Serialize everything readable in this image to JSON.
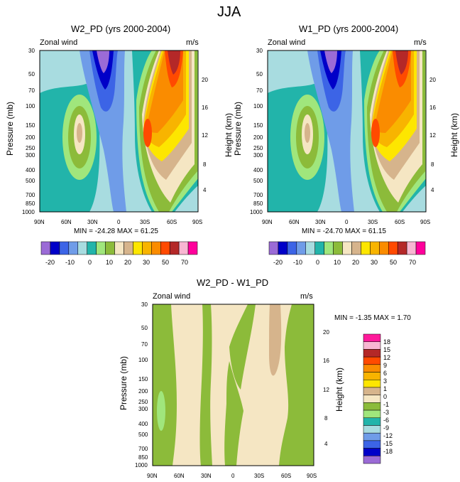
{
  "figure": {
    "title": "JJA"
  },
  "chart_data": [
    {
      "type": "contour",
      "title": "W2_PD (yrs 2000-2004)",
      "left_label": "Zonal wind",
      "right_label": "m/s",
      "ylabel": "Pressure (mb)",
      "y2label": "Height (km)",
      "x_ticks": [
        "90N",
        "60N",
        "30N",
        "0",
        "30S",
        "60S",
        "90S"
      ],
      "y_ticks": [
        "30",
        "50",
        "70",
        "100",
        "150",
        "200",
        "250",
        "300",
        "400",
        "500",
        "700",
        "850",
        "1000"
      ],
      "y2_ticks": [
        "20",
        "16",
        "12",
        "8",
        "4"
      ],
      "stats": "MIN = -24.28  MAX =  61.25",
      "min": -24.28,
      "max": 61.25
    },
    {
      "type": "contour",
      "title": "W1_PD (yrs 2000-2004)",
      "left_label": "Zonal wind",
      "right_label": "m/s",
      "ylabel": "Pressure (mb)",
      "y2label": "Height (km)",
      "x_ticks": [
        "90N",
        "60N",
        "30N",
        "0",
        "30S",
        "60S",
        "90S"
      ],
      "y_ticks": [
        "30",
        "50",
        "70",
        "100",
        "150",
        "200",
        "250",
        "300",
        "400",
        "500",
        "700",
        "850",
        "1000"
      ],
      "y2_ticks": [
        "20",
        "16",
        "12",
        "8",
        "4"
      ],
      "stats": "MIN = -24.70  MAX =  61.15",
      "min": -24.7,
      "max": 61.15
    },
    {
      "type": "contour",
      "title": "W2_PD - W1_PD",
      "left_label": "Zonal wind",
      "right_label": "m/s",
      "ylabel": "Pressure (mb)",
      "y2label": "Height (km)",
      "x_ticks": [
        "90N",
        "60N",
        "30N",
        "0",
        "30S",
        "60S",
        "90S"
      ],
      "y_ticks": [
        "30",
        "50",
        "70",
        "100",
        "150",
        "200",
        "250",
        "300",
        "400",
        "500",
        "700",
        "850",
        "1000"
      ],
      "y2_ticks": [
        "20",
        "16",
        "12",
        "8",
        "4"
      ],
      "stats": "MIN =  -1.35  MAX =   1.70",
      "min": -1.35,
      "max": 1.7
    }
  ],
  "colorbar_top": {
    "labels": [
      "-20",
      "-10",
      "0",
      "10",
      "20",
      "30",
      "50",
      "70"
    ],
    "colors": [
      "#9b6bd6",
      "#0000c8",
      "#3c64e6",
      "#6f9ce8",
      "#a8dce0",
      "#22b4aa",
      "#a0e67c",
      "#8cbb3a",
      "#f5e6c3",
      "#d6b48c",
      "#fde600",
      "#f8b400",
      "#fa8c00",
      "#ff4a00",
      "#b42828",
      "#f8b6d2",
      "#ff009b"
    ]
  },
  "colorbar_diff": {
    "labels": [
      "18",
      "15",
      "12",
      "9",
      "6",
      "3",
      "1",
      "0",
      "-1",
      "-3",
      "-6",
      "-9",
      "-12",
      "-15",
      "-18"
    ],
    "colors": [
      "#ff1a9b",
      "#f8b6d2",
      "#b42828",
      "#ff4a00",
      "#fa8c00",
      "#f8b400",
      "#fde600",
      "#d6b48c",
      "#f5e6c3",
      "#8cbb3a",
      "#a0e67c",
      "#22b4aa",
      "#a8dce0",
      "#6f9ce8",
      "#3c64e6",
      "#0000c8",
      "#9b6bd6"
    ]
  }
}
